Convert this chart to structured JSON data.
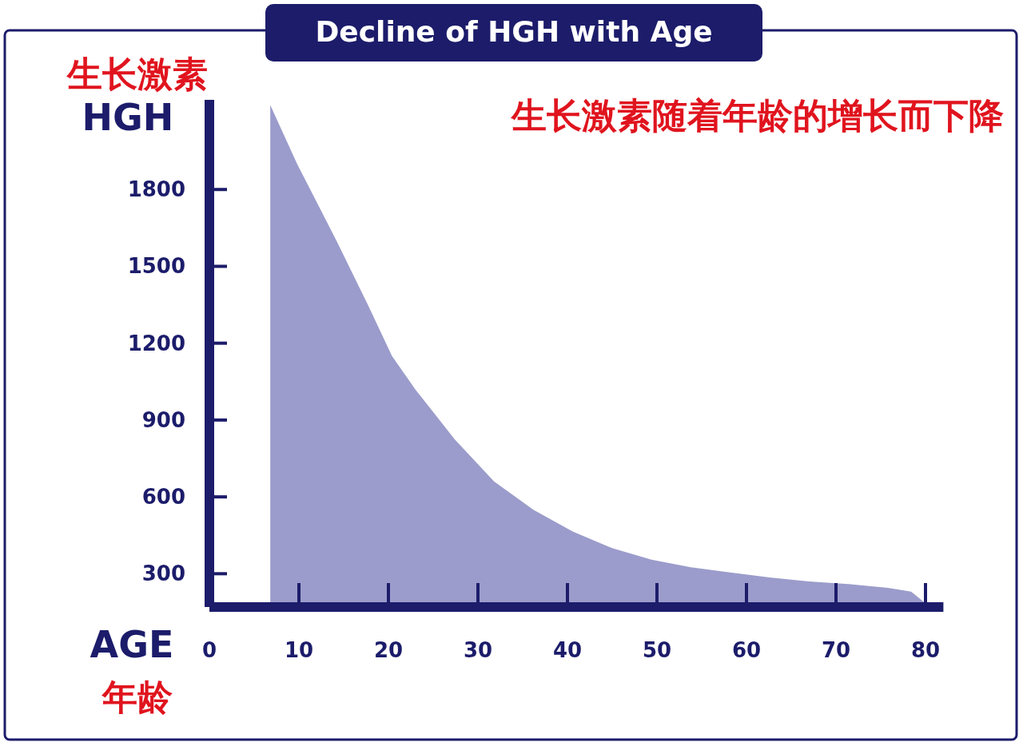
{
  "chart_data": {
    "type": "area",
    "title": "Decline of HGH with Age",
    "subtitle": "生长激素随着年龄的增长而下降",
    "ylabel": "HGH",
    "xlabel": "AGE",
    "annotations": [
      "生长激素",
      "年龄"
    ],
    "x": [
      6.8,
      9.8,
      14.2,
      17.7,
      20.4,
      23.0,
      27.4,
      31.8,
      36.2,
      40.6,
      45.0,
      49.4,
      53.8,
      58.2,
      62.6,
      67.0,
      71.4,
      75.8,
      78.4,
      79.8
    ],
    "values": [
      2130,
      1900,
      1600,
      1350,
      1150,
      1020,
      825,
      660,
      550,
      465,
      400,
      355,
      325,
      305,
      285,
      270,
      260,
      245,
      230,
      190
    ],
    "color": "#9b9ccb",
    "xlim": [
      0,
      82
    ],
    "ylim": [
      170,
      2150
    ],
    "xticks": [
      0,
      10,
      20,
      30,
      40,
      50,
      60,
      70,
      80
    ],
    "yticks": [
      300,
      600,
      900,
      1200,
      1500,
      1800
    ]
  }
}
